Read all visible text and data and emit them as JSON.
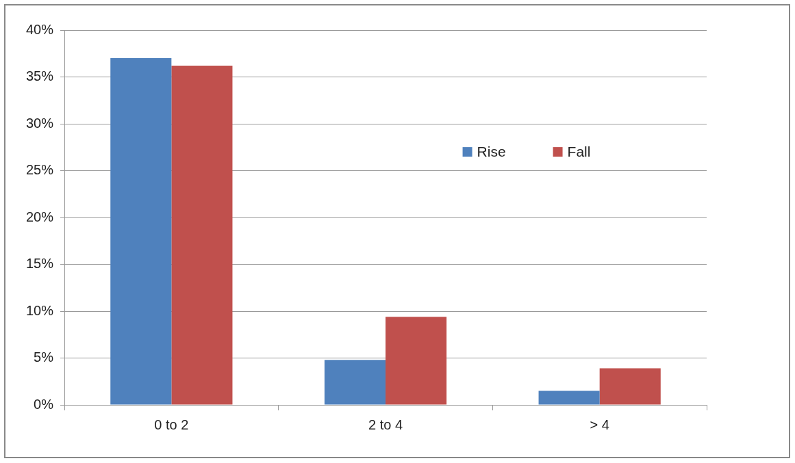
{
  "chart_data": {
    "type": "bar",
    "categories": [
      "0 to 2",
      "2 to 4",
      "> 4"
    ],
    "series": [
      {
        "name": "Rise",
        "color": "#4f81bd",
        "values": [
          37,
          4.8,
          1.5
        ]
      },
      {
        "name": "Fall",
        "color": "#c0504d",
        "values": [
          36.2,
          9.4,
          3.9
        ]
      }
    ],
    "ylim": [
      0,
      40
    ],
    "yticks": [
      {
        "value": 0,
        "label": "0%"
      },
      {
        "value": 5,
        "label": "5%"
      },
      {
        "value": 10,
        "label": "10%"
      },
      {
        "value": 15,
        "label": "15%"
      },
      {
        "value": 20,
        "label": "20%"
      },
      {
        "value": 25,
        "label": "25%"
      },
      {
        "value": 30,
        "label": "30%"
      },
      {
        "value": 35,
        "label": "35%"
      },
      {
        "value": 40,
        "label": "40%"
      }
    ],
    "grid": "y",
    "legend": "right"
  }
}
